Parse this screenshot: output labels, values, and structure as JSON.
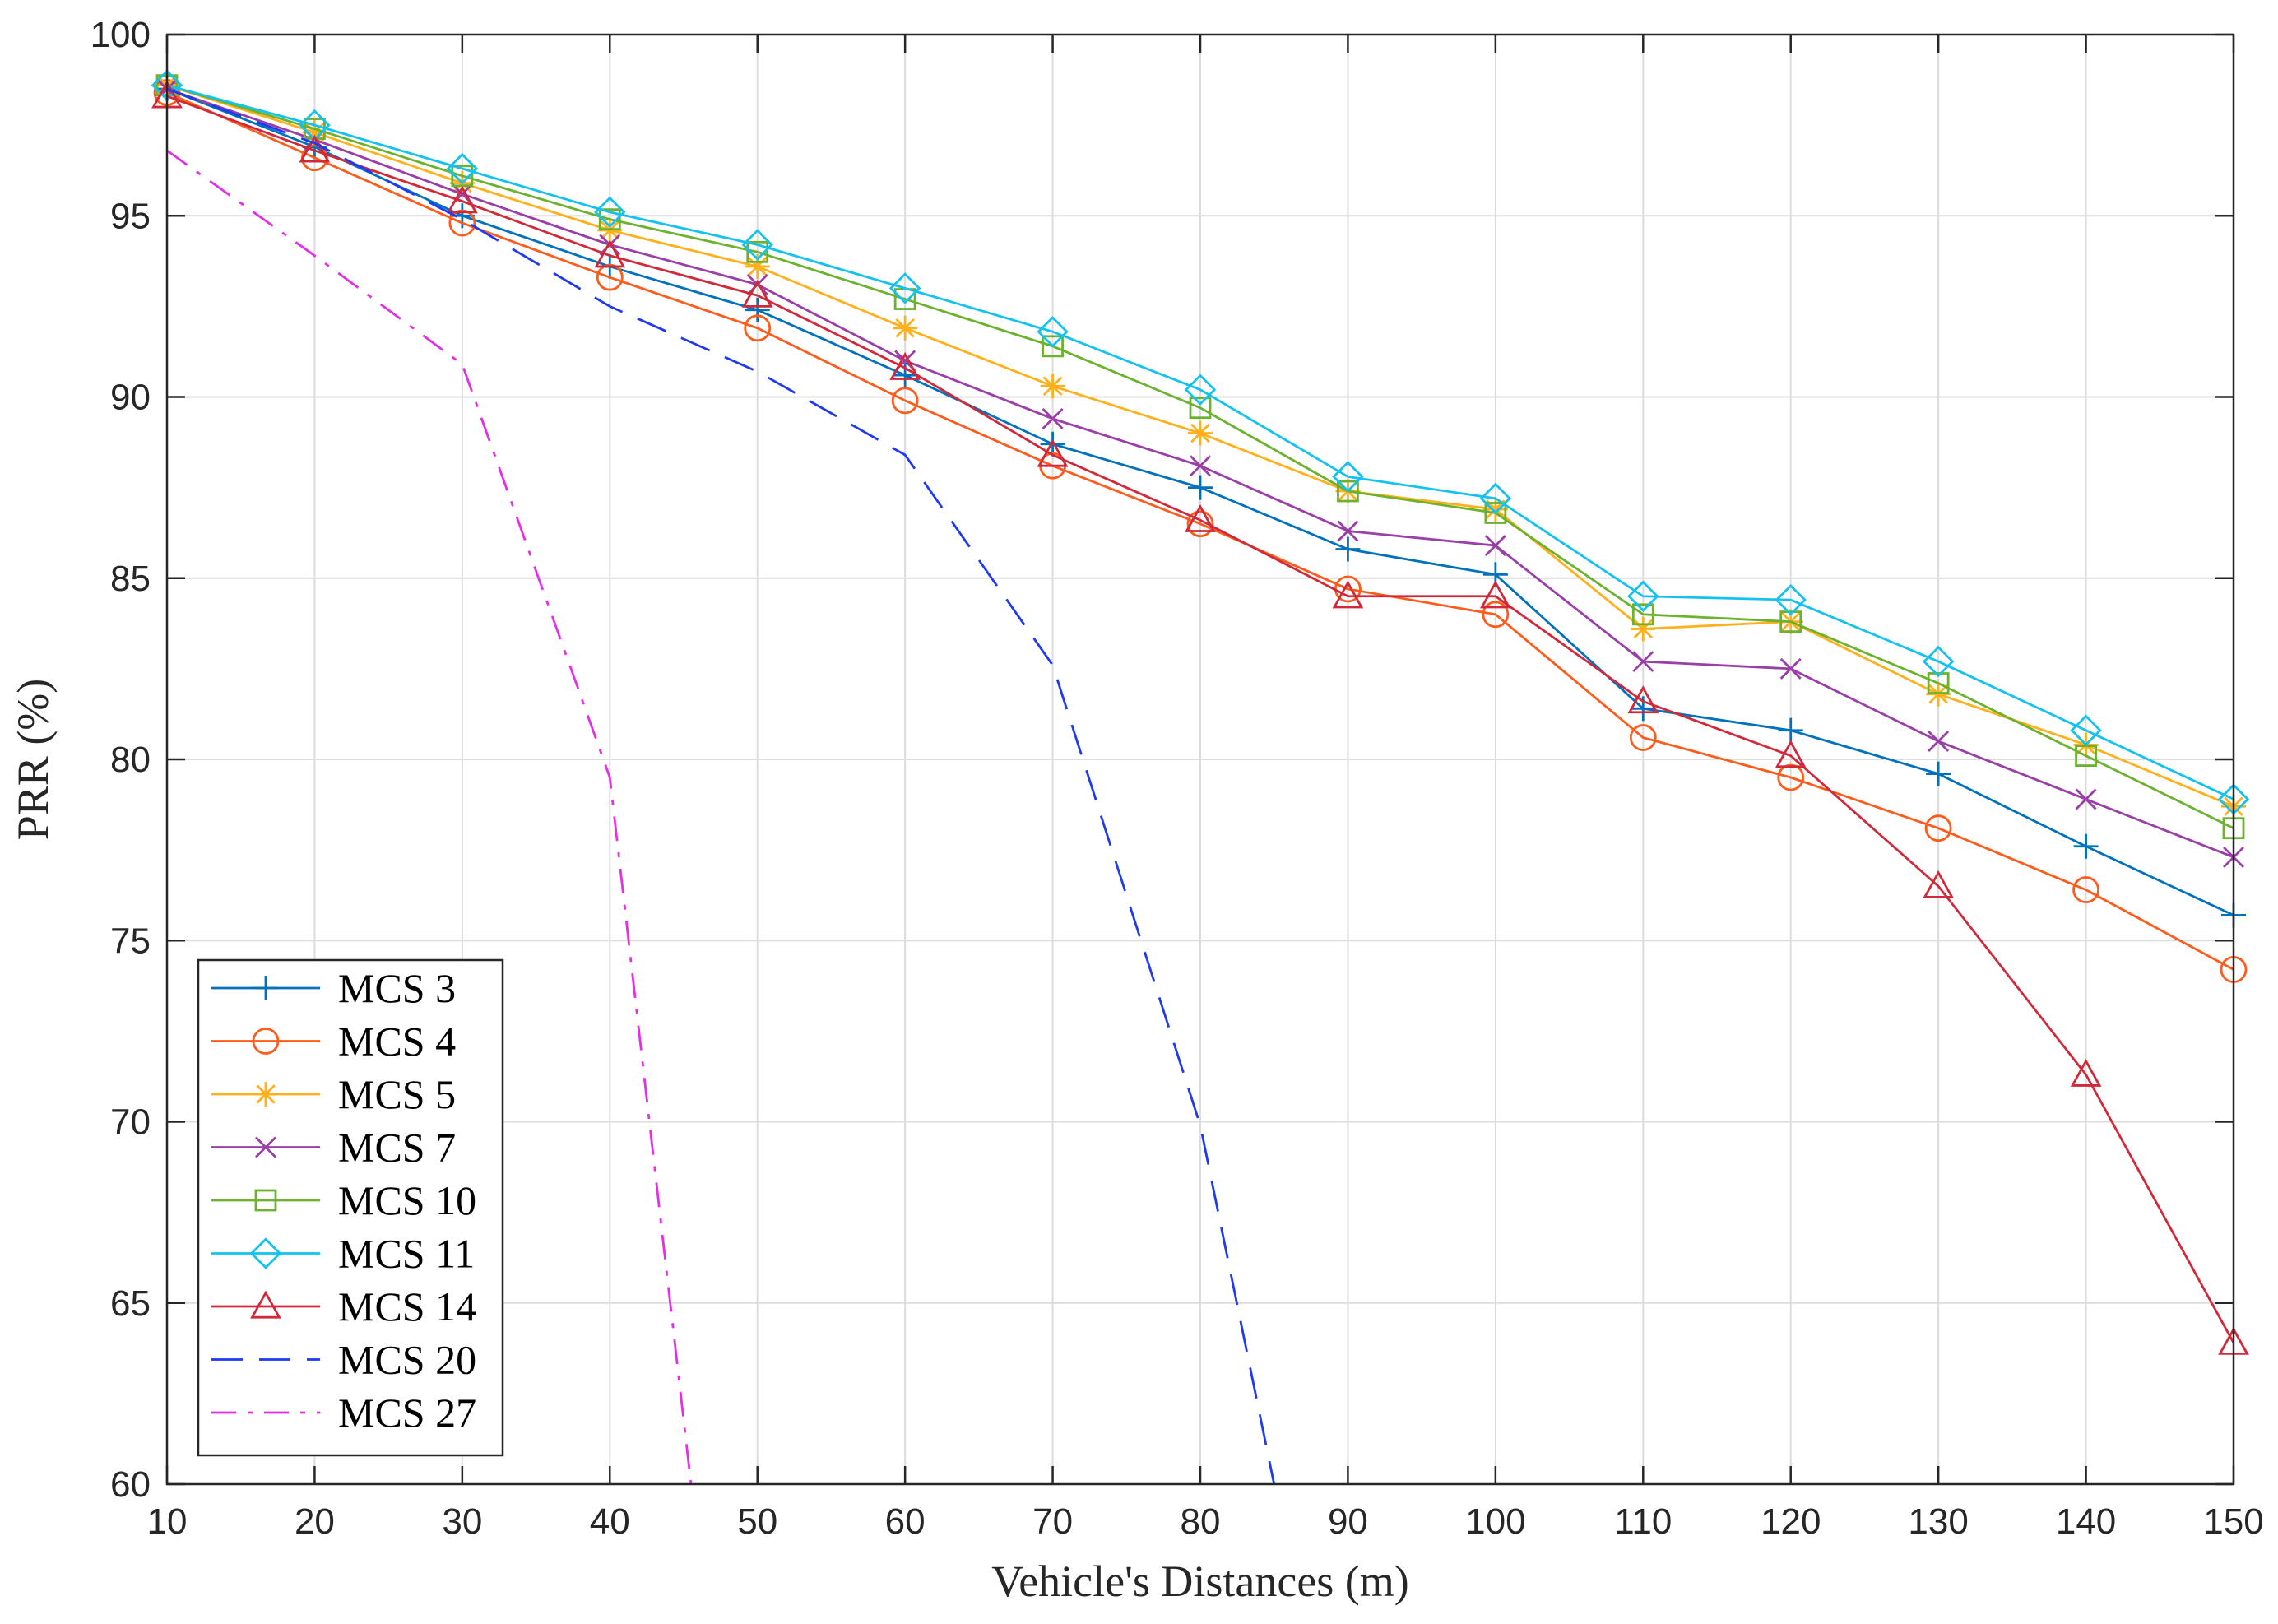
{
  "chart_data": {
    "type": "line",
    "title": "",
    "xlabel": "Vehicle's Distances (m)",
    "ylabel": "PRR (%)",
    "xlim": [
      10,
      150
    ],
    "ylim": [
      60,
      100
    ],
    "xticks": [
      10,
      20,
      30,
      40,
      50,
      60,
      70,
      80,
      90,
      100,
      110,
      120,
      130,
      140,
      150
    ],
    "yticks": [
      60,
      65,
      70,
      75,
      80,
      85,
      90,
      95,
      100
    ],
    "x": [
      10,
      20,
      30,
      40,
      50,
      60,
      70,
      80,
      90,
      100,
      110,
      120,
      130,
      140,
      150
    ],
    "grid": true,
    "legend_position": "bottom-left",
    "series": [
      {
        "name": "MCS  3",
        "color": "#0072BD",
        "marker": "plus",
        "dash": "solid",
        "values": [
          98.5,
          96.9,
          95.0,
          93.6,
          92.4,
          90.6,
          88.7,
          87.5,
          85.8,
          85.1,
          81.4,
          80.8,
          79.6,
          77.6,
          75.7
        ]
      },
      {
        "name": "MCS  4",
        "color": "#FF5B1A",
        "marker": "circle",
        "dash": "solid",
        "values": [
          98.4,
          96.6,
          94.8,
          93.3,
          91.9,
          89.9,
          88.1,
          86.5,
          84.7,
          84.0,
          80.6,
          79.5,
          78.1,
          76.4,
          74.2
        ]
      },
      {
        "name": "MCS  5",
        "color": "#FFB01A",
        "marker": "asterisk",
        "dash": "solid",
        "values": [
          98.6,
          97.3,
          95.9,
          94.6,
          93.6,
          91.9,
          90.3,
          89.0,
          87.4,
          86.9,
          83.6,
          83.8,
          81.8,
          80.4,
          78.7
        ]
      },
      {
        "name": "MCS  7",
        "color": "#9B3FA8",
        "marker": "x",
        "dash": "solid",
        "values": [
          98.5,
          97.1,
          95.6,
          94.2,
          93.1,
          91.0,
          89.4,
          88.1,
          86.3,
          85.9,
          82.7,
          82.5,
          80.5,
          78.9,
          77.3
        ]
      },
      {
        "name": "MCS  10",
        "color": "#6CB22E",
        "marker": "square",
        "dash": "solid",
        "values": [
          98.6,
          97.4,
          96.1,
          94.9,
          94.0,
          92.7,
          91.4,
          89.7,
          87.4,
          86.8,
          84.0,
          83.8,
          82.1,
          80.1,
          78.1
        ]
      },
      {
        "name": "MCS  11",
        "color": "#14C2F0",
        "marker": "diamond",
        "dash": "solid",
        "values": [
          98.6,
          97.5,
          96.3,
          95.1,
          94.2,
          93.0,
          91.8,
          90.2,
          87.8,
          87.2,
          84.5,
          84.4,
          82.7,
          80.8,
          78.9
        ]
      },
      {
        "name": "MCS  14",
        "color": "#D2293A",
        "marker": "triangle",
        "dash": "solid",
        "values": [
          98.3,
          96.8,
          95.4,
          93.9,
          92.8,
          90.8,
          88.4,
          86.6,
          84.5,
          84.5,
          81.6,
          80.1,
          76.5,
          71.3,
          63.9
        ]
      },
      {
        "name": "MCS  20",
        "color": "#1F3AF0",
        "marker": "none",
        "dash": "dashed",
        "x": [
          10,
          20,
          30,
          40,
          50,
          60,
          70,
          80,
          85
        ],
        "values": [
          98.5,
          97.0,
          94.9,
          92.5,
          90.7,
          88.4,
          82.6,
          69.9,
          60.0
        ]
      },
      {
        "name": "MCS  27",
        "color": "#E62EE8",
        "marker": "none",
        "dash": "dashdot",
        "x": [
          10,
          20,
          30,
          40,
          45.5
        ],
        "values": [
          96.8,
          93.9,
          90.9,
          79.5,
          60.0
        ]
      }
    ]
  }
}
